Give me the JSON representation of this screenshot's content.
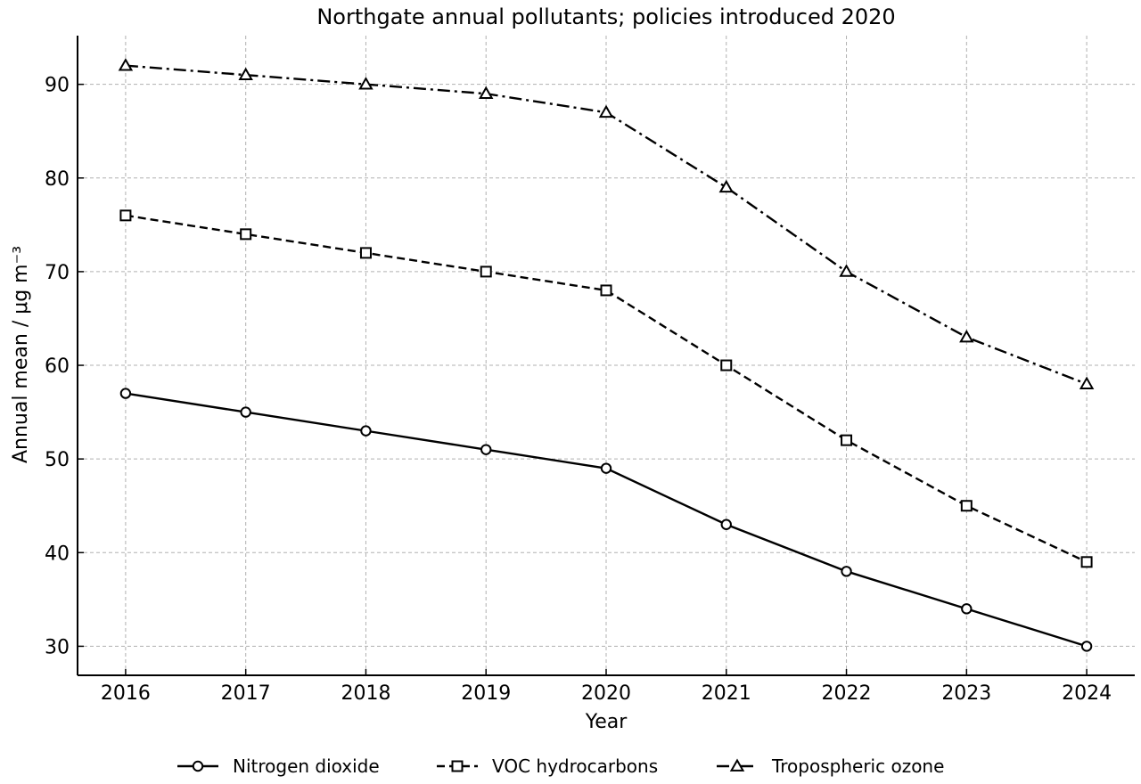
{
  "chart_data": {
    "type": "line",
    "title": "Northgate annual pollutants; policies introduced 2020",
    "xlabel": "Year",
    "ylabel": "Annual mean / μg m⁻³",
    "x": [
      2016,
      2017,
      2018,
      2019,
      2020,
      2021,
      2022,
      2023,
      2024
    ],
    "xlim": [
      2015.6,
      2024.4
    ],
    "ylim": [
      26.9,
      95.2
    ],
    "yticks": [
      30,
      40,
      50,
      60,
      70,
      80,
      90
    ],
    "grid": true,
    "legend_position": "bottom-center",
    "series": [
      {
        "name": "Nitrogen dioxide",
        "values": [
          57,
          55,
          53,
          51,
          49,
          43,
          38,
          34,
          30
        ],
        "line_style": "solid",
        "marker": "circle",
        "color": "#000000"
      },
      {
        "name": "VOC hydrocarbons",
        "values": [
          76,
          74,
          72,
          70,
          68,
          60,
          52,
          45,
          39
        ],
        "line_style": "dashed",
        "marker": "square",
        "color": "#000000"
      },
      {
        "name": "Tropospheric ozone",
        "values": [
          92,
          91,
          90,
          89,
          87,
          79,
          70,
          63,
          58
        ],
        "line_style": "dashdot",
        "marker": "triangle",
        "color": "#000000"
      }
    ]
  }
}
